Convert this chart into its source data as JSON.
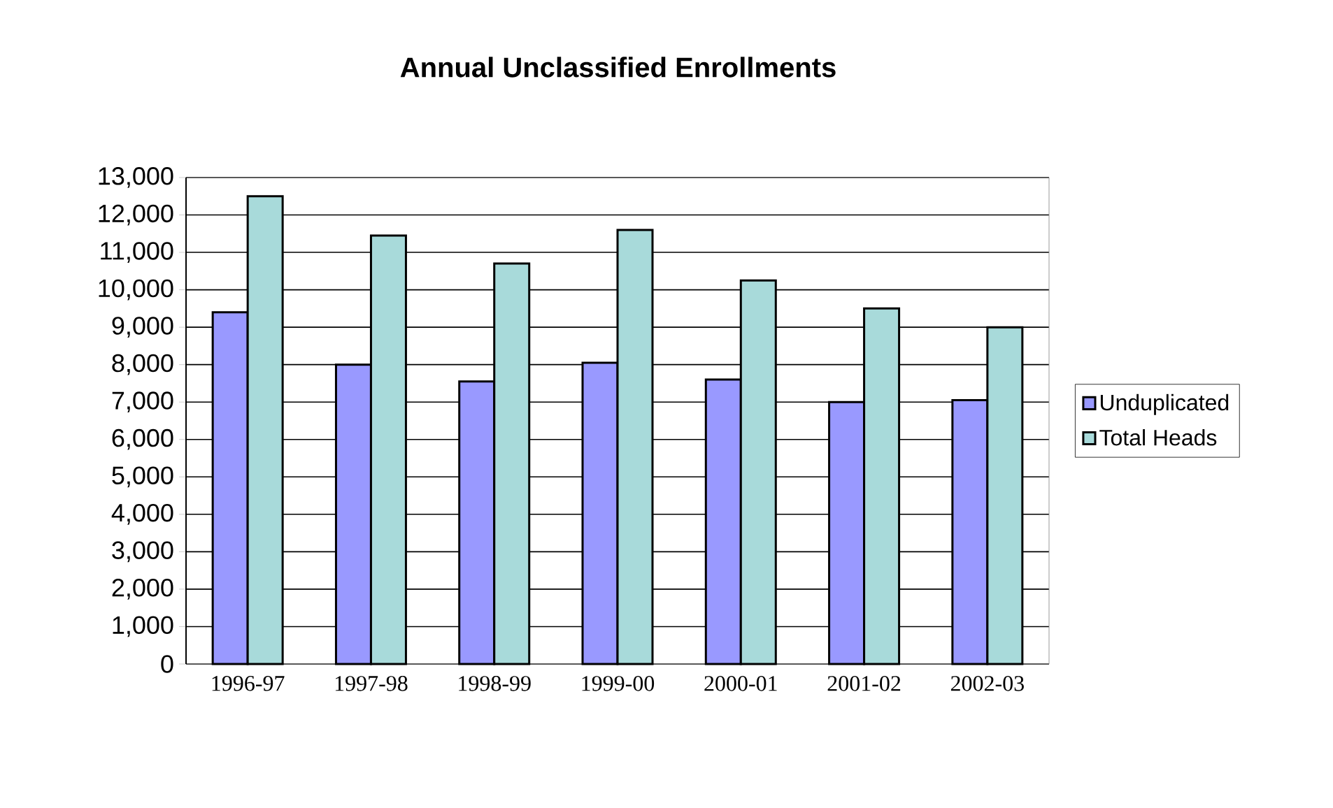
{
  "chart_data": {
    "type": "bar",
    "title": "Annual Unclassified Enrollments",
    "categories": [
      "1996-97",
      "1997-98",
      "1998-99",
      "1999-00",
      "2000-01",
      "2001-02",
      "2002-03"
    ],
    "series": [
      {
        "name": "Unduplicated",
        "color": "#9999ff",
        "values": [
          9400,
          8000,
          7550,
          8050,
          7600,
          7000,
          7050
        ]
      },
      {
        "name": "Total Heads",
        "color": "#a8dada",
        "values": [
          12500,
          11450,
          10700,
          11600,
          10250,
          9500,
          9000
        ]
      }
    ],
    "ylim": [
      0,
      13000
    ],
    "yticks": [
      0,
      {
        "value": 1000,
        "label": "1,000"
      },
      {
        "value": 2000,
        "label": "2,000"
      },
      {
        "value": 3000,
        "label": "3,000"
      },
      {
        "value": 4000,
        "label": "4,000"
      },
      {
        "value": 5000,
        "label": "5,000"
      },
      {
        "value": 6000,
        "label": "6,000"
      },
      {
        "value": 7000,
        "label": "7,000"
      },
      {
        "value": 8000,
        "label": "8,000"
      },
      {
        "value": 9000,
        "label": "9,000"
      },
      {
        "value": 10000,
        "label": "10,000"
      },
      {
        "value": 11000,
        "label": "11,000"
      },
      {
        "value": 12000,
        "label": "12,000"
      },
      {
        "value": 13000,
        "label": "13,000"
      }
    ],
    "grid": "y",
    "legend": "right"
  }
}
